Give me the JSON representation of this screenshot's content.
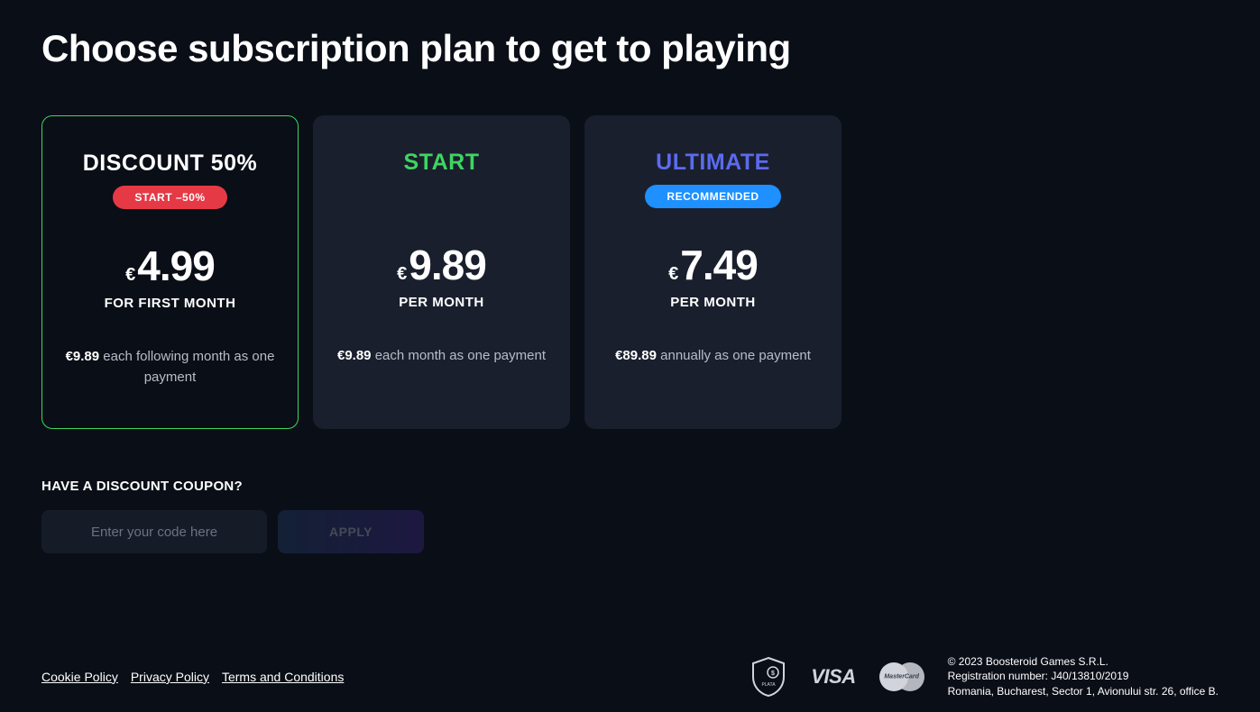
{
  "page_title": "Choose subscription plan to get to playing",
  "colors": {
    "background": "#0a0e17",
    "card_bg": "#1a1f2e",
    "selected_border": "#3dd65f",
    "start_name": "#3dd65f",
    "ultimate_name": "#5b6bef",
    "badge_red": "#e63946",
    "badge_blue": "#1e90ff"
  },
  "plans": [
    {
      "name": "DISCOUNT 50%",
      "name_color": "#ffffff",
      "badge_text": "START –50%",
      "badge_class": "red",
      "euro": "€",
      "price": "4.99",
      "period": "FOR FIRST MONTH",
      "sub_euro": "€",
      "sub_price": "9.89",
      "sub_text": " each following month as one payment",
      "selected": true
    },
    {
      "name": "START",
      "name_color": "#3dd65f",
      "badge_text": "",
      "badge_class": "",
      "euro": "€",
      "price": "9.89",
      "period": "PER MONTH",
      "sub_euro": "€",
      "sub_price": "9.89",
      "sub_text": " each month as one payment",
      "selected": false
    },
    {
      "name": "ULTIMATE",
      "name_color": "#5b6bef",
      "badge_text": "RECOMMENDED",
      "badge_class": "blue",
      "euro": "€",
      "price": "7.49",
      "period": "PER MONTH",
      "sub_euro": "€",
      "sub_price": "89.89",
      "sub_text": " annually as one payment",
      "selected": false
    }
  ],
  "coupon": {
    "label": "HAVE A DISCOUNT COUPON?",
    "placeholder": "Enter your code here",
    "apply": "APPLY"
  },
  "footer": {
    "links": [
      "Cookie Policy",
      "Privacy Policy",
      "Terms and Conditions"
    ],
    "visa": "VISA",
    "mastercard": "MasterCard",
    "company_line1": "© 2023 Boosteroid Games S.R.L.",
    "company_line2": "Registration number: J40/13810/2019",
    "company_line3": "Romania, Bucharest, Sector 1, Avionului str. 26, office B."
  }
}
